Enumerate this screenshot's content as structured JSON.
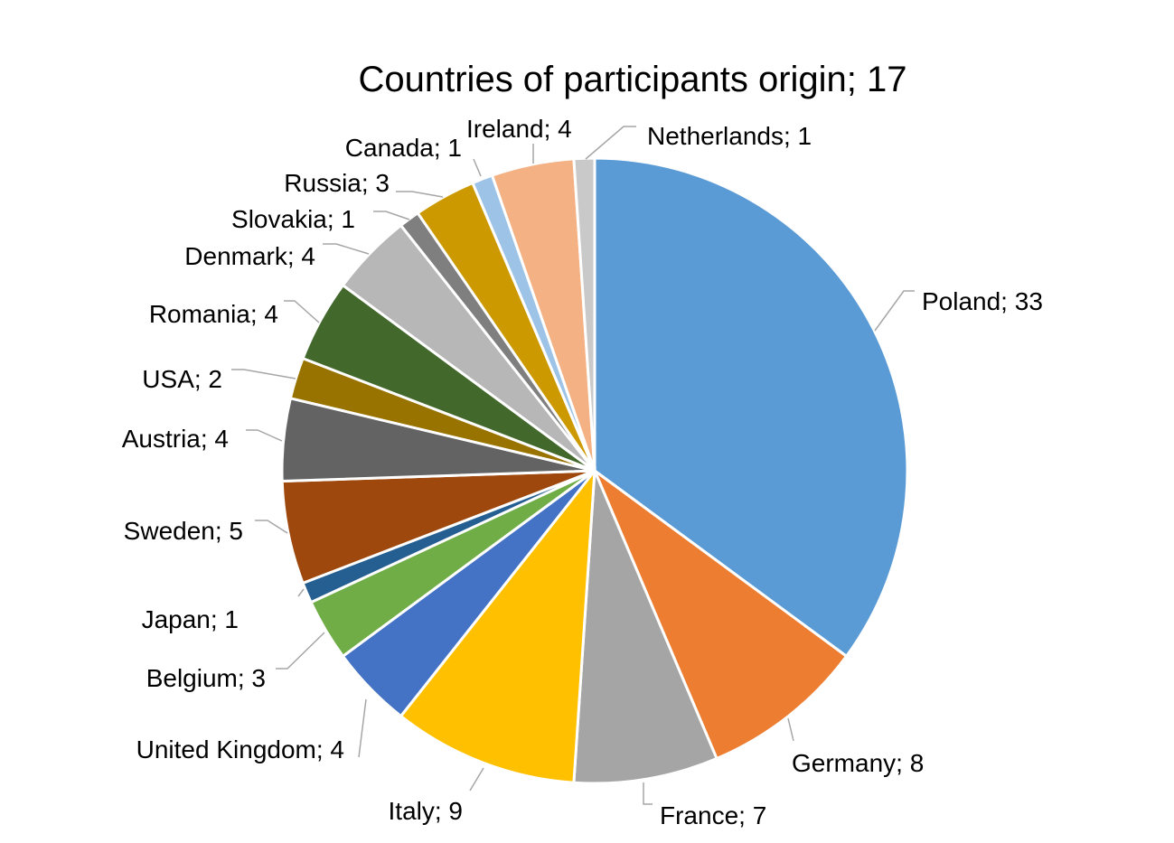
{
  "chart_data": {
    "type": "pie",
    "title": "Countries of participants origin; 17",
    "start": "12 o'clock",
    "direction": "clockwise",
    "legend": "none",
    "label_separator": "; ",
    "slices": [
      {
        "label": "Poland",
        "value": 33,
        "color": "#5b9bd5"
      },
      {
        "label": "Germany",
        "value": 8,
        "color": "#ed7d31"
      },
      {
        "label": "France",
        "value": 7,
        "color": "#a5a5a5"
      },
      {
        "label": "Italy",
        "value": 9,
        "color": "#ffc000"
      },
      {
        "label": "United Kingdom",
        "value": 4,
        "color": "#4472c4"
      },
      {
        "label": "Belgium",
        "value": 3,
        "color": "#70ad47"
      },
      {
        "label": "Japan",
        "value": 1,
        "color": "#255e91"
      },
      {
        "label": "Sweden",
        "value": 5,
        "color": "#9e480e"
      },
      {
        "label": "Austria",
        "value": 4,
        "color": "#636363"
      },
      {
        "label": "USA",
        "value": 2,
        "color": "#997300"
      },
      {
        "label": "Romania",
        "value": 4,
        "color": "#43682b"
      },
      {
        "label": "Denmark",
        "value": 4,
        "color": "#b7b7b7"
      },
      {
        "label": "Slovakia",
        "value": 1,
        "color": "#7f7f7f"
      },
      {
        "label": "Russia",
        "value": 3,
        "color": "#cc9a00"
      },
      {
        "label": "Canada",
        "value": 1,
        "color": "#9dc3e6"
      },
      {
        "label": "Ireland",
        "value": 4,
        "color": "#f4b183"
      },
      {
        "label": "Netherlands",
        "value": 1,
        "color": "#c9c9c9"
      }
    ]
  }
}
